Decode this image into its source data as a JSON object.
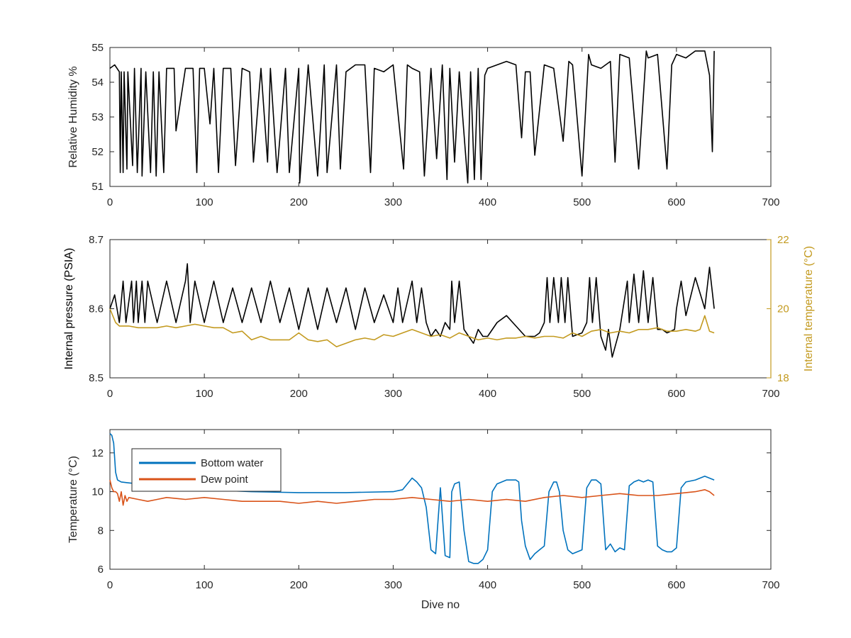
{
  "chart_data": [
    {
      "type": "line",
      "title": "",
      "xlabel": "",
      "ylabel": "Relative Humidity %",
      "xlim": [
        0,
        700
      ],
      "ylim": [
        51,
        55
      ],
      "xticks": [
        0,
        100,
        200,
        300,
        400,
        500,
        600,
        700
      ],
      "yticks": [
        51,
        52,
        53,
        54,
        55
      ],
      "grid": false,
      "series": [
        {
          "name": "",
          "color": "#000000",
          "x": [
            0,
            5,
            10,
            11,
            12,
            14,
            15,
            18,
            19,
            24,
            26,
            29,
            33,
            34,
            38,
            43,
            46,
            49,
            52,
            57,
            60,
            68,
            70,
            80,
            88,
            92,
            95,
            100,
            106,
            110,
            115,
            120,
            128,
            133,
            140,
            148,
            152,
            160,
            167,
            170,
            177,
            186,
            190,
            200,
            201,
            210,
            220,
            227,
            230,
            240,
            244,
            250,
            260,
            270,
            276,
            280,
            290,
            300,
            311,
            315,
            320,
            328,
            333,
            340,
            346,
            352,
            357,
            360,
            365,
            370,
            379,
            382,
            386,
            390,
            393,
            397,
            400,
            410,
            420,
            430,
            436,
            440,
            445,
            450,
            460,
            470,
            480,
            486,
            490,
            500,
            507,
            510,
            520,
            530,
            535,
            540,
            550,
            560,
            568,
            570,
            580,
            590,
            595,
            600,
            610,
            620,
            630,
            635,
            638,
            640
          ],
          "values": [
            54.4,
            54.5,
            54.3,
            51.4,
            54.3,
            51.4,
            54.3,
            51.5,
            54.3,
            51.6,
            54.4,
            51.4,
            54.4,
            51.3,
            54.3,
            51.4,
            54.3,
            51.3,
            54.3,
            51.4,
            54.4,
            54.4,
            52.6,
            54.4,
            54.4,
            51.4,
            54.4,
            54.4,
            52.8,
            54.4,
            51.4,
            54.4,
            54.4,
            51.6,
            54.4,
            54.3,
            51.7,
            54.4,
            51.7,
            54.4,
            51.4,
            54.4,
            51.4,
            54.4,
            51.1,
            54.5,
            51.3,
            54.5,
            51.4,
            54.5,
            51.5,
            54.3,
            54.5,
            54.5,
            51.4,
            54.4,
            54.3,
            54.5,
            51.5,
            54.5,
            54.4,
            54.3,
            51.3,
            54.4,
            51.8,
            54.5,
            51.2,
            54.4,
            51.7,
            54.3,
            51.1,
            54.3,
            51.2,
            54.4,
            51.2,
            54.2,
            54.4,
            54.5,
            54.6,
            54.5,
            52.4,
            54.3,
            54.3,
            51.9,
            54.5,
            54.4,
            52.3,
            54.6,
            54.5,
            51.3,
            54.8,
            54.5,
            54.4,
            54.6,
            51.7,
            54.8,
            54.7,
            51.5,
            54.9,
            54.7,
            54.8,
            51.5,
            54.5,
            54.8,
            54.7,
            54.9,
            54.9,
            54.2,
            52.0,
            54.9
          ]
        }
      ]
    },
    {
      "type": "line",
      "title": "",
      "xlabel": "",
      "ylabel": "Internal pressure (PSIA)",
      "y2label": "Internal temperature (°C)",
      "xlim": [
        0,
        700
      ],
      "ylim": [
        8.5,
        8.7
      ],
      "y2lim": [
        18,
        22
      ],
      "xticks": [
        0,
        100,
        200,
        300,
        400,
        500,
        600,
        700
      ],
      "yticks": [
        8.5,
        8.6,
        8.7
      ],
      "y2ticks": [
        18,
        20,
        22
      ],
      "grid": false,
      "series": [
        {
          "name": "",
          "axis": "left",
          "color": "#000000",
          "x": [
            0,
            5,
            10,
            14,
            17,
            23,
            25,
            28,
            30,
            34,
            37,
            40,
            50,
            60,
            70,
            80,
            82,
            85,
            90,
            100,
            110,
            120,
            130,
            140,
            150,
            160,
            170,
            180,
            190,
            200,
            210,
            220,
            230,
            240,
            250,
            260,
            270,
            280,
            290,
            300,
            305,
            310,
            320,
            325,
            330,
            335,
            340,
            345,
            350,
            355,
            360,
            362,
            365,
            370,
            375,
            380,
            385,
            390,
            395,
            400,
            410,
            420,
            430,
            440,
            450,
            455,
            460,
            463,
            466,
            470,
            475,
            478,
            482,
            485,
            490,
            500,
            505,
            508,
            511,
            515,
            520,
            525,
            528,
            532,
            540,
            548,
            550,
            555,
            560,
            565,
            570,
            575,
            580,
            585,
            590,
            598,
            600,
            605,
            610,
            620,
            630,
            635,
            640
          ],
          "values": [
            8.6,
            8.62,
            8.58,
            8.64,
            8.58,
            8.64,
            8.58,
            8.64,
            8.58,
            8.64,
            8.58,
            8.64,
            8.58,
            8.64,
            8.58,
            8.64,
            8.665,
            8.58,
            8.64,
            8.58,
            8.64,
            8.58,
            8.63,
            8.58,
            8.63,
            8.58,
            8.64,
            8.58,
            8.63,
            8.57,
            8.63,
            8.57,
            8.63,
            8.58,
            8.63,
            8.57,
            8.63,
            8.58,
            8.62,
            8.58,
            8.63,
            8.58,
            8.64,
            8.58,
            8.63,
            8.58,
            8.56,
            8.57,
            8.56,
            8.58,
            8.57,
            8.64,
            8.58,
            8.64,
            8.57,
            8.56,
            8.55,
            8.57,
            8.56,
            8.56,
            8.58,
            8.59,
            8.575,
            8.56,
            8.56,
            8.565,
            8.58,
            8.645,
            8.58,
            8.645,
            8.58,
            8.645,
            8.58,
            8.645,
            8.56,
            8.565,
            8.58,
            8.645,
            8.58,
            8.645,
            8.56,
            8.54,
            8.57,
            8.53,
            8.57,
            8.64,
            8.58,
            8.65,
            8.58,
            8.655,
            8.58,
            8.645,
            8.57,
            8.57,
            8.565,
            8.57,
            8.6,
            8.64,
            8.59,
            8.645,
            8.6,
            8.66,
            8.6
          ]
        },
        {
          "name": "",
          "axis": "right",
          "color": "#c39a1f",
          "x": [
            0,
            3,
            6,
            10,
            20,
            30,
            40,
            50,
            60,
            70,
            80,
            90,
            100,
            110,
            120,
            130,
            140,
            150,
            160,
            170,
            180,
            190,
            200,
            210,
            220,
            230,
            240,
            250,
            260,
            270,
            280,
            290,
            300,
            310,
            320,
            330,
            340,
            350,
            360,
            370,
            380,
            390,
            400,
            410,
            420,
            430,
            440,
            450,
            460,
            470,
            480,
            490,
            500,
            510,
            520,
            530,
            540,
            550,
            560,
            570,
            580,
            590,
            600,
            610,
            620,
            625,
            630,
            635,
            640
          ],
          "values": [
            20.0,
            19.8,
            19.6,
            19.5,
            19.5,
            19.45,
            19.45,
            19.45,
            19.5,
            19.45,
            19.5,
            19.55,
            19.5,
            19.45,
            19.45,
            19.3,
            19.35,
            19.1,
            19.2,
            19.1,
            19.1,
            19.1,
            19.3,
            19.1,
            19.05,
            19.1,
            18.9,
            19.0,
            19.1,
            19.15,
            19.1,
            19.25,
            19.2,
            19.3,
            19.4,
            19.3,
            19.2,
            19.25,
            19.15,
            19.3,
            19.2,
            19.1,
            19.15,
            19.1,
            19.15,
            19.15,
            19.2,
            19.15,
            19.2,
            19.2,
            19.15,
            19.3,
            19.2,
            19.35,
            19.4,
            19.3,
            19.35,
            19.3,
            19.4,
            19.4,
            19.45,
            19.35,
            19.35,
            19.4,
            19.35,
            19.4,
            19.8,
            19.35,
            19.3
          ]
        }
      ]
    },
    {
      "type": "line",
      "title": "",
      "xlabel": "Dive no",
      "ylabel": "Temperature (°C)",
      "xlim": [
        0,
        700
      ],
      "ylim": [
        6,
        13.2
      ],
      "xticks": [
        0,
        100,
        200,
        300,
        400,
        500,
        600,
        700
      ],
      "yticks": [
        6,
        8,
        10,
        12
      ],
      "grid": false,
      "legend": "top-left",
      "series": [
        {
          "name": "Bottom water",
          "color": "#0072bd",
          "x": [
            0,
            2,
            4,
            6,
            8,
            12,
            20,
            30,
            50,
            100,
            150,
            200,
            250,
            300,
            310,
            315,
            320,
            325,
            330,
            335,
            340,
            345,
            350,
            355,
            360,
            362,
            365,
            370,
            375,
            380,
            385,
            390,
            395,
            400,
            405,
            410,
            420,
            430,
            433,
            436,
            440,
            445,
            450,
            455,
            460,
            465,
            470,
            473,
            476,
            480,
            485,
            490,
            495,
            500,
            505,
            510,
            515,
            520,
            525,
            530,
            535,
            540,
            545,
            550,
            555,
            560,
            565,
            570,
            575,
            580,
            585,
            590,
            595,
            600,
            605,
            610,
            620,
            630,
            640
          ],
          "values": [
            13.0,
            12.9,
            12.5,
            11.0,
            10.6,
            10.5,
            10.45,
            10.4,
            10.3,
            10.1,
            10.0,
            9.95,
            9.95,
            10.0,
            10.1,
            10.4,
            10.7,
            10.5,
            10.2,
            9.2,
            7.0,
            6.8,
            10.2,
            6.7,
            6.6,
            10.0,
            10.4,
            10.5,
            8.0,
            6.4,
            6.3,
            6.3,
            6.5,
            7.0,
            10.0,
            10.4,
            10.6,
            10.6,
            10.5,
            8.5,
            7.2,
            6.5,
            6.8,
            7.0,
            7.2,
            10.0,
            10.5,
            10.5,
            10.0,
            8.0,
            7.0,
            6.8,
            6.9,
            7.0,
            10.2,
            10.6,
            10.6,
            10.4,
            7.0,
            7.3,
            6.9,
            7.1,
            7.0,
            10.3,
            10.5,
            10.6,
            10.5,
            10.6,
            10.5,
            7.2,
            7.0,
            6.9,
            6.9,
            7.1,
            10.2,
            10.5,
            10.6,
            10.8,
            10.6
          ]
        },
        {
          "name": "Dew point",
          "color": "#d95319",
          "x": [
            0,
            2,
            4,
            6,
            8,
            10,
            12,
            14,
            16,
            18,
            20,
            30,
            40,
            50,
            60,
            80,
            100,
            120,
            140,
            160,
            180,
            200,
            220,
            240,
            260,
            280,
            300,
            320,
            340,
            360,
            380,
            400,
            420,
            440,
            460,
            480,
            500,
            520,
            540,
            560,
            580,
            600,
            620,
            630,
            635,
            640
          ],
          "values": [
            10.6,
            10.2,
            10.0,
            10.0,
            9.9,
            9.5,
            10.0,
            9.3,
            9.8,
            9.5,
            9.7,
            9.6,
            9.5,
            9.6,
            9.7,
            9.6,
            9.7,
            9.6,
            9.5,
            9.5,
            9.5,
            9.4,
            9.5,
            9.4,
            9.5,
            9.6,
            9.6,
            9.7,
            9.6,
            9.5,
            9.6,
            9.5,
            9.6,
            9.5,
            9.7,
            9.8,
            9.7,
            9.8,
            9.9,
            9.8,
            9.8,
            9.9,
            10.0,
            10.1,
            10.0,
            9.8
          ]
        }
      ]
    }
  ]
}
